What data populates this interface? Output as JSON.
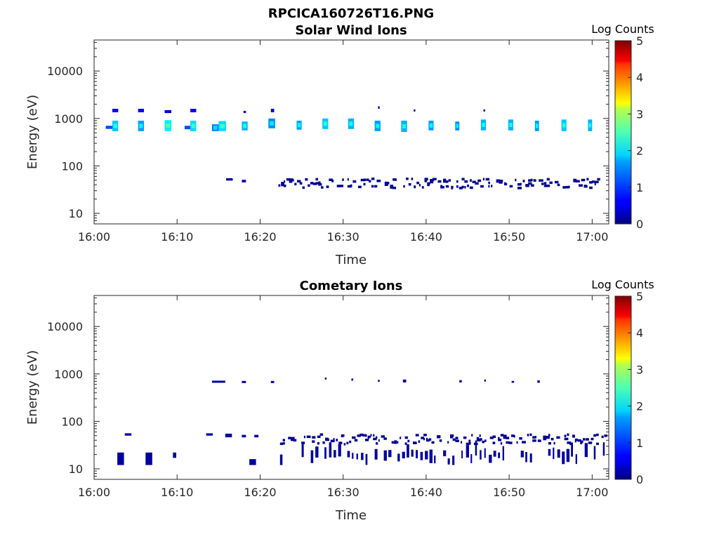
{
  "figure_title": "RPCICA160726T16.PNG",
  "chart_data": [
    {
      "type": "heatmap",
      "title": "Solar Wind Ions",
      "xlabel": "Time",
      "ylabel": "Energy (eV)",
      "x_ticks": [
        "16:00",
        "16:10",
        "16:20",
        "16:30",
        "16:40",
        "16:50",
        "17:00"
      ],
      "x_range_minutes": [
        0,
        62
      ],
      "y_scale": "log",
      "y_ticks": [
        {
          "value": 10,
          "label": "10"
        },
        {
          "value": 100,
          "label": "100"
        },
        {
          "value": 1000,
          "label": "1000"
        },
        {
          "value": 10000,
          "label": "10000"
        }
      ],
      "y_range": [
        6,
        45000
      ],
      "colorbar": {
        "label": "Log Counts",
        "range": [
          0,
          5
        ],
        "ticks": [
          "0",
          "1",
          "2",
          "3",
          "4",
          "5"
        ],
        "colormap": "jet"
      },
      "patches": [
        {
          "t0": 1.4,
          "t1": 2.2,
          "e0": 600,
          "e1": 700,
          "level": 1.0
        },
        {
          "t0": 2.2,
          "t1": 2.9,
          "e0": 540,
          "e1": 900,
          "level": 1.6
        },
        {
          "t0": 2.2,
          "t1": 2.9,
          "e0": 1350,
          "e1": 1600,
          "level": 0.5
        },
        {
          "t0": 5.3,
          "t1": 6.0,
          "e0": 540,
          "e1": 900,
          "level": 1.4
        },
        {
          "t0": 5.3,
          "t1": 6.0,
          "e0": 1350,
          "e1": 1600,
          "level": 0.5
        },
        {
          "t0": 8.5,
          "t1": 9.3,
          "e0": 540,
          "e1": 920,
          "level": 1.8
        },
        {
          "t0": 8.5,
          "t1": 9.3,
          "e0": 1300,
          "e1": 1500,
          "level": 0.4
        },
        {
          "t0": 10.9,
          "t1": 11.6,
          "e0": 590,
          "e1": 700,
          "level": 1.0
        },
        {
          "t0": 11.6,
          "t1": 12.3,
          "e0": 540,
          "e1": 900,
          "level": 1.7
        },
        {
          "t0": 11.6,
          "t1": 12.3,
          "e0": 1350,
          "e1": 1600,
          "level": 0.5
        },
        {
          "t0": 14.2,
          "t1": 15.0,
          "e0": 540,
          "e1": 750,
          "level": 1.2
        },
        {
          "t0": 15.0,
          "t1": 15.9,
          "e0": 540,
          "e1": 880,
          "level": 1.7
        },
        {
          "t0": 17.8,
          "t1": 18.5,
          "e0": 560,
          "e1": 860,
          "level": 1.5
        },
        {
          "t0": 18.0,
          "t1": 18.3,
          "e0": 1300,
          "e1": 1450,
          "level": 0.4
        },
        {
          "t0": 21.0,
          "t1": 21.8,
          "e0": 620,
          "e1": 1000,
          "level": 1.3
        },
        {
          "t0": 21.3,
          "t1": 21.7,
          "e0": 1350,
          "e1": 1600,
          "level": 0.5
        },
        {
          "t0": 24.4,
          "t1": 25.0,
          "e0": 580,
          "e1": 900,
          "level": 1.4
        },
        {
          "t0": 27.5,
          "t1": 28.2,
          "e0": 600,
          "e1": 1000,
          "level": 1.6
        },
        {
          "t0": 30.6,
          "t1": 31.3,
          "e0": 600,
          "e1": 1000,
          "level": 1.5
        },
        {
          "t0": 34.2,
          "t1": 34.4,
          "e0": 1600,
          "e1": 1800,
          "level": 0.4
        },
        {
          "t0": 33.8,
          "t1": 34.5,
          "e0": 540,
          "e1": 900,
          "level": 1.4
        },
        {
          "t0": 37.0,
          "t1": 37.7,
          "e0": 520,
          "e1": 900,
          "level": 1.5
        },
        {
          "t0": 38.5,
          "t1": 38.7,
          "e0": 1400,
          "e1": 1550,
          "level": 0.4
        },
        {
          "t0": 40.3,
          "t1": 40.9,
          "e0": 560,
          "e1": 900,
          "level": 1.4
        },
        {
          "t0": 43.5,
          "t1": 44.0,
          "e0": 560,
          "e1": 860,
          "level": 1.3
        },
        {
          "t0": 46.6,
          "t1": 47.2,
          "e0": 560,
          "e1": 950,
          "level": 1.5
        },
        {
          "t0": 46.9,
          "t1": 47.1,
          "e0": 1400,
          "e1": 1550,
          "level": 0.4
        },
        {
          "t0": 49.9,
          "t1": 50.5,
          "e0": 560,
          "e1": 950,
          "level": 1.5
        },
        {
          "t0": 53.1,
          "t1": 53.6,
          "e0": 540,
          "e1": 900,
          "level": 1.4
        },
        {
          "t0": 56.3,
          "t1": 56.9,
          "e0": 540,
          "e1": 950,
          "level": 1.6
        },
        {
          "t0": 59.5,
          "t1": 60.0,
          "e0": 540,
          "e1": 950,
          "level": 1.5
        },
        {
          "t0": 15.9,
          "t1": 16.7,
          "e0": 49,
          "e1": 55,
          "level": 0.2
        },
        {
          "t0": 17.8,
          "t1": 18.3,
          "e0": 45,
          "e1": 51,
          "level": 0.2
        }
      ],
      "speckle": {
        "t_start": 22.2,
        "t_end": 61.0,
        "e_low": 36,
        "e_high": 57,
        "level": 0.1
      }
    },
    {
      "type": "heatmap",
      "title": "Cometary Ions",
      "xlabel": "Time",
      "ylabel": "Energy (eV)",
      "x_ticks": [
        "16:00",
        "16:10",
        "16:20",
        "16:30",
        "16:40",
        "16:50",
        "17:00"
      ],
      "x_range_minutes": [
        0,
        62
      ],
      "y_scale": "log",
      "y_ticks": [
        {
          "value": 10,
          "label": "10"
        },
        {
          "value": 100,
          "label": "100"
        },
        {
          "value": 1000,
          "label": "1000"
        },
        {
          "value": 10000,
          "label": "10000"
        }
      ],
      "y_range": [
        6,
        45000
      ],
      "colorbar": {
        "label": "Log Counts",
        "range": [
          0,
          5
        ],
        "ticks": [
          "0",
          "1",
          "2",
          "3",
          "4",
          "5"
        ],
        "colormap": "jet"
      },
      "patches": [
        {
          "t0": 2.8,
          "t1": 3.6,
          "e0": 12,
          "e1": 22,
          "level": 0.15
        },
        {
          "t0": 3.7,
          "t1": 4.5,
          "e0": 50,
          "e1": 56,
          "level": 0.15
        },
        {
          "t0": 6.2,
          "t1": 7.0,
          "e0": 12,
          "e1": 22,
          "level": 0.15
        },
        {
          "t0": 9.5,
          "t1": 9.9,
          "e0": 17,
          "e1": 22,
          "level": 0.15
        },
        {
          "t0": 13.5,
          "t1": 14.3,
          "e0": 50,
          "e1": 56,
          "level": 0.15
        },
        {
          "t0": 14.2,
          "t1": 15.8,
          "e0": 650,
          "e1": 720,
          "level": 0.2
        },
        {
          "t0": 15.8,
          "t1": 16.6,
          "e0": 46,
          "e1": 55,
          "level": 0.15
        },
        {
          "t0": 17.8,
          "t1": 18.3,
          "e0": 640,
          "e1": 710,
          "level": 0.15
        },
        {
          "t0": 17.8,
          "t1": 18.3,
          "e0": 46,
          "e1": 52,
          "level": 0.15
        },
        {
          "t0": 18.7,
          "t1": 19.5,
          "e0": 12,
          "e1": 16,
          "level": 0.15
        },
        {
          "t0": 19.3,
          "t1": 19.8,
          "e0": 46,
          "e1": 52,
          "level": 0.15
        },
        {
          "t0": 21.3,
          "t1": 21.7,
          "e0": 640,
          "e1": 710,
          "level": 0.15
        },
        {
          "t0": 22.4,
          "t1": 22.7,
          "e0": 12,
          "e1": 20,
          "level": 0.15
        },
        {
          "t0": 27.8,
          "t1": 28.0,
          "e0": 760,
          "e1": 840,
          "level": 0.15
        },
        {
          "t0": 31.0,
          "t1": 31.2,
          "e0": 720,
          "e1": 800,
          "level": 0.15
        },
        {
          "t0": 34.2,
          "t1": 34.4,
          "e0": 680,
          "e1": 750,
          "level": 0.15
        },
        {
          "t0": 37.2,
          "t1": 37.6,
          "e0": 660,
          "e1": 760,
          "level": 0.15
        },
        {
          "t0": 44.0,
          "t1": 44.3,
          "e0": 660,
          "e1": 740,
          "level": 0.15
        },
        {
          "t0": 47.0,
          "t1": 47.2,
          "e0": 690,
          "e1": 760,
          "level": 0.15
        },
        {
          "t0": 50.3,
          "t1": 50.6,
          "e0": 650,
          "e1": 710,
          "level": 0.15
        },
        {
          "t0": 53.4,
          "t1": 53.7,
          "e0": 650,
          "e1": 730,
          "level": 0.15
        }
      ],
      "speckle": {
        "t_start": 22.4,
        "t_end": 61.5,
        "e_low": 35,
        "e_high": 56,
        "level": 0.1
      },
      "spikes": {
        "t_start": 25.0,
        "t_end": 61.5,
        "e_low": 12,
        "e_high": 24,
        "level": 0.15
      }
    }
  ]
}
